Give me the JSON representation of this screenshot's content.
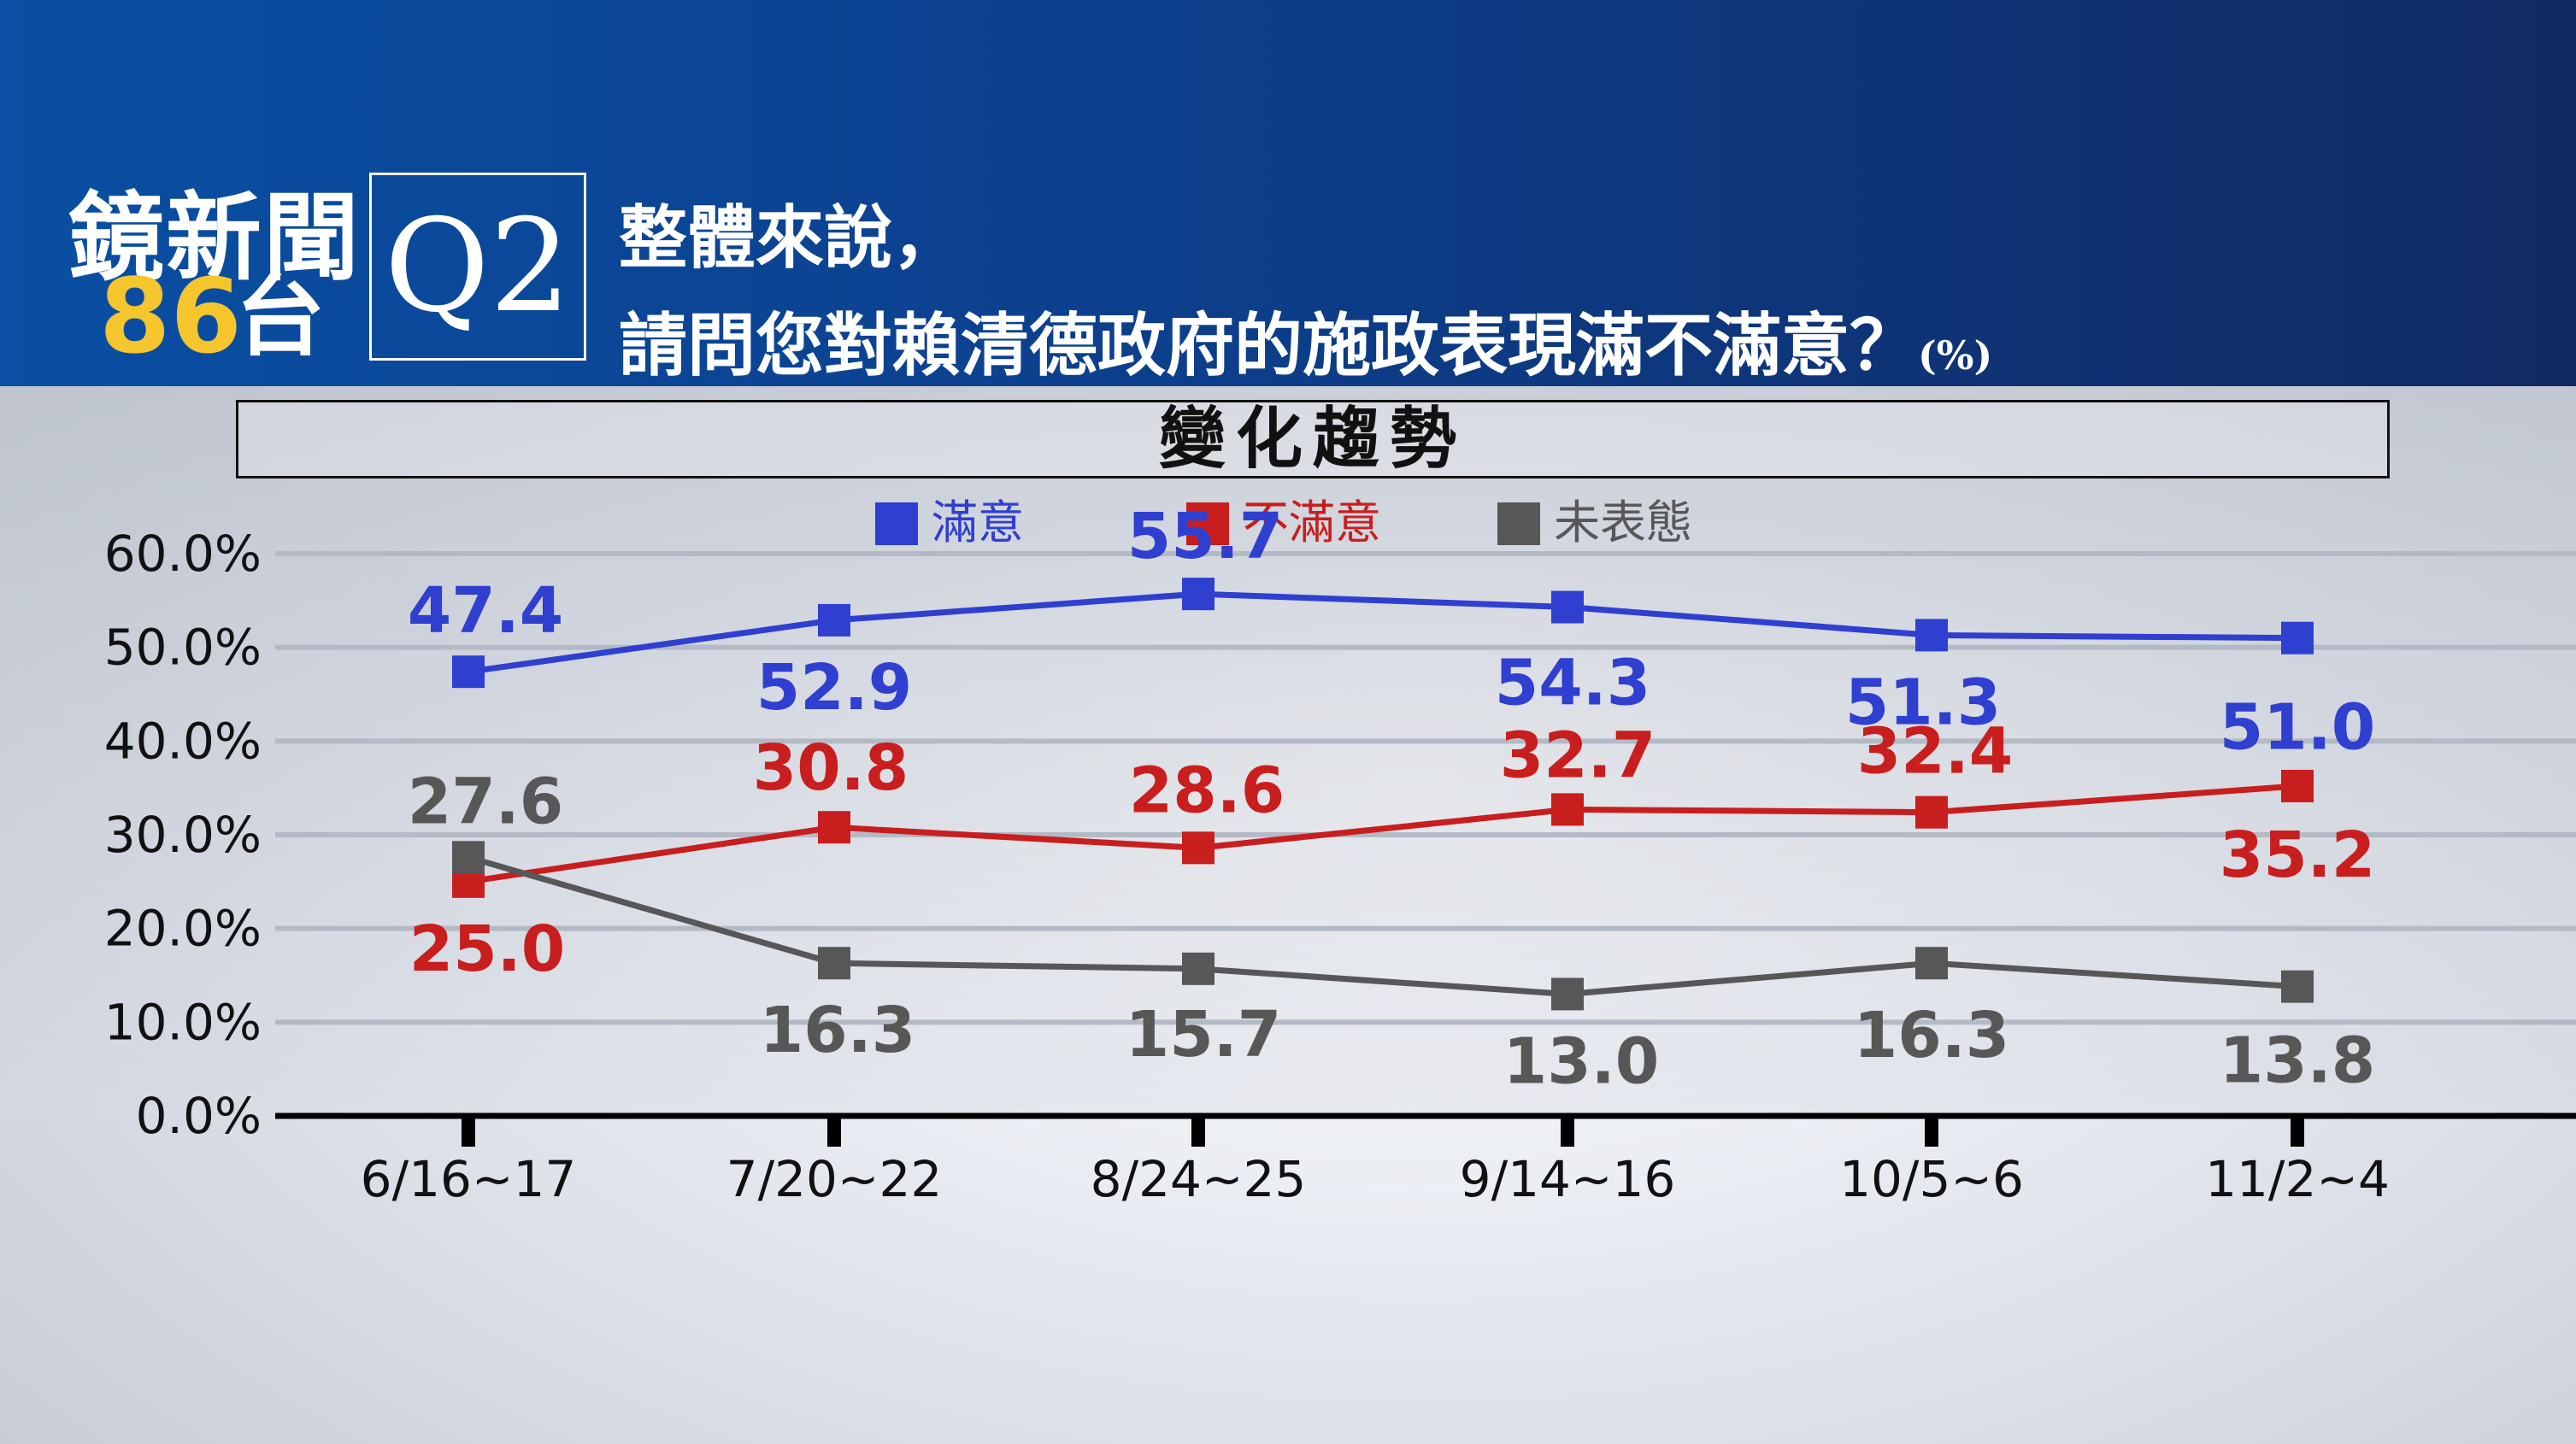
{
  "header": {
    "logo_top": "鏡新聞",
    "logo_number": "86",
    "logo_suffix": "台",
    "question_code": "Q2",
    "question_line1": "整體來說，",
    "question_line2": "請問您對賴清德政府的施政表現滿不滿意？",
    "unit": "(%)"
  },
  "panel_title": "變化趨勢",
  "colors": {
    "satisfied": "#2f3fd0",
    "dissatisfied": "#c81e1e",
    "neutral": "#575757"
  },
  "chart_data": {
    "type": "line",
    "title": "變化趨勢",
    "categories": [
      "6/16~17",
      "7/20~22",
      "8/24~25",
      "9/14~16",
      "10/5~6",
      "11/2~4"
    ],
    "series": [
      {
        "name": "滿意",
        "values": [
          47.4,
          52.9,
          55.7,
          54.3,
          51.3,
          51.0
        ],
        "labels": [
          "47.4",
          "52.9",
          "55.7",
          "54.3",
          "51.3",
          "51.0"
        ]
      },
      {
        "name": "不滿意",
        "values": [
          25.0,
          30.8,
          28.6,
          32.7,
          32.4,
          35.2
        ],
        "labels": [
          "25.0",
          "30.8",
          "28.6",
          "32.7",
          "32.4",
          "35.2"
        ]
      },
      {
        "name": "未表態",
        "values": [
          27.6,
          16.3,
          15.7,
          13.0,
          16.3,
          13.8
        ],
        "labels": [
          "27.6",
          "16.3",
          "15.7",
          "13.0",
          "16.3",
          "13.8"
        ]
      }
    ],
    "yticks": [
      "0.0%",
      "10.0%",
      "20.0%",
      "30.0%",
      "40.0%",
      "50.0%",
      "60.0%"
    ],
    "ylim": [
      0,
      60
    ],
    "grid": true,
    "legend_position": "top-center"
  }
}
